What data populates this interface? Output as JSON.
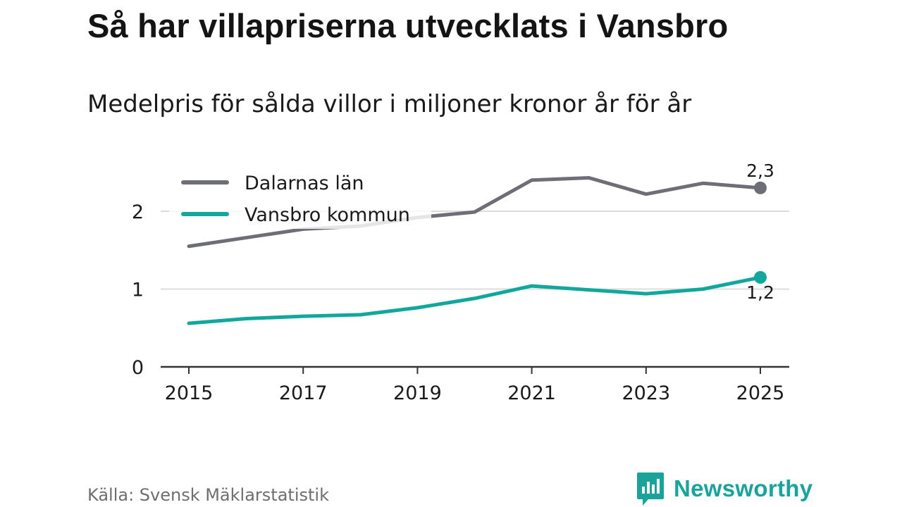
{
  "title": "Så har villapriserna utvecklats i Vansbro",
  "subtitle": "Medelpris för sålda villor i miljoner kronor år för år",
  "source": "Källa: Svensk Mäklarstatistik",
  "brand": "Newsworthy",
  "colors": {
    "dalarna": "#6e6e76",
    "vansbro": "#12a79d",
    "grid": "#dddddd",
    "axis": "#333333",
    "brand": "#1aa39a"
  },
  "chart_data": {
    "type": "line",
    "title": "Så har villapriserna utvecklats i Vansbro",
    "subtitle": "Medelpris för sålda villor i miljoner kronor år för år",
    "xlabel": "",
    "ylabel": "",
    "x": [
      2015,
      2016,
      2017,
      2018,
      2019,
      2020,
      2021,
      2022,
      2023,
      2024,
      2025
    ],
    "xticks": [
      "2015",
      "2017",
      "2019",
      "2021",
      "2023",
      "2025"
    ],
    "yticks": [
      "0",
      "1",
      "2"
    ],
    "ylim": [
      0,
      2.5
    ],
    "grid": true,
    "legend_position": "top-left",
    "series": [
      {
        "name": "Dalarnas län",
        "key": "dalarna",
        "values": [
          1.55,
          1.66,
          1.77,
          1.81,
          1.92,
          1.99,
          2.4,
          2.43,
          2.22,
          2.36,
          2.3
        ],
        "end_label": "2,3"
      },
      {
        "name": "Vansbro kommun",
        "key": "vansbro",
        "values": [
          0.56,
          0.62,
          0.65,
          0.67,
          0.76,
          0.88,
          1.04,
          0.99,
          0.94,
          1.0,
          1.15
        ],
        "end_label": "1,2"
      }
    ]
  }
}
